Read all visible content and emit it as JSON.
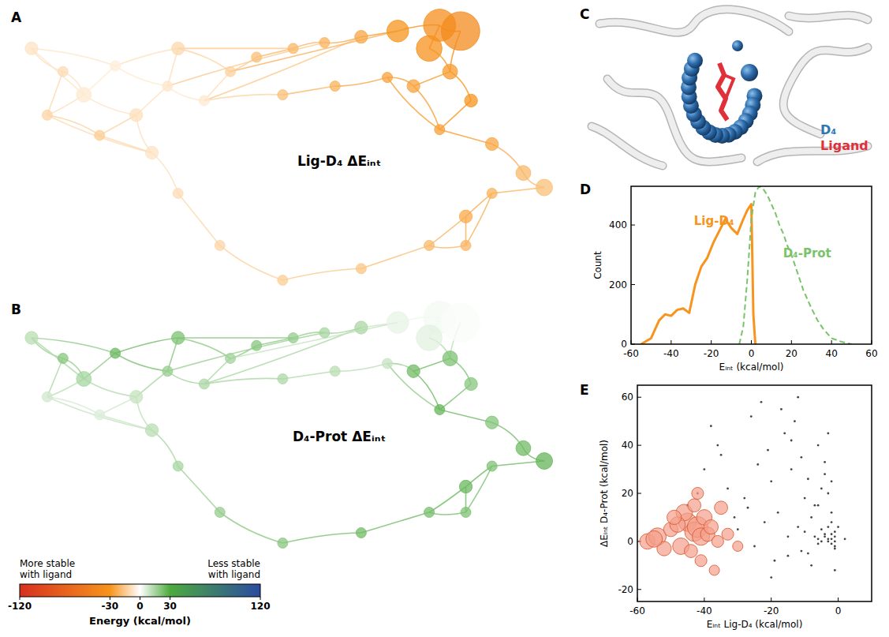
{
  "chart_data": [
    {
      "type": "network",
      "panel": "A",
      "title": "Lig-D₄ ΔEᵢₙₜ",
      "x": [
        2,
        8,
        5,
        12,
        18,
        22,
        28,
        15,
        30,
        35,
        40,
        45,
        52,
        58,
        65,
        72,
        80,
        84,
        78,
        82,
        75,
        86,
        80,
        90,
        96,
        100,
        90,
        85,
        78,
        65,
        50,
        38,
        30,
        25,
        70,
        60,
        50,
        85
      ],
      "y": [
        12,
        20,
        35,
        28,
        18,
        35,
        25,
        42,
        12,
        30,
        20,
        15,
        12,
        10,
        8,
        6,
        4,
        6,
        12,
        20,
        25,
        30,
        40,
        45,
        55,
        60,
        62,
        70,
        80,
        88,
        92,
        80,
        62,
        48,
        22,
        25,
        28,
        80
      ],
      "sizes": [
        2,
        1,
        1,
        3,
        1,
        2,
        1,
        1,
        2,
        1,
        1,
        1,
        1,
        1,
        2,
        8,
        20,
        30,
        12,
        3,
        2,
        2,
        1,
        2,
        3,
        4,
        1,
        2,
        1,
        1,
        1,
        1,
        1,
        2,
        1,
        1,
        1,
        1
      ],
      "values": [
        -8,
        -10,
        -12,
        -6,
        -5,
        -9,
        -7,
        -14,
        -11,
        -6,
        -13,
        -18,
        -20,
        -22,
        -25,
        -30,
        -35,
        -38,
        -32,
        -28,
        -26,
        -30,
        -27,
        -25,
        -20,
        -18,
        -22,
        -24,
        -20,
        -16,
        -14,
        -12,
        -10,
        -8,
        -26,
        -22,
        -18,
        -21
      ],
      "edges": [
        [
          0,
          1
        ],
        [
          1,
          2
        ],
        [
          1,
          3
        ],
        [
          2,
          3
        ],
        [
          3,
          4
        ],
        [
          4,
          0
        ],
        [
          3,
          5
        ],
        [
          5,
          7
        ],
        [
          2,
          7
        ],
        [
          4,
          6
        ],
        [
          6,
          8
        ],
        [
          5,
          6
        ],
        [
          6,
          9
        ],
        [
          9,
          10
        ],
        [
          8,
          10
        ],
        [
          10,
          11
        ],
        [
          11,
          12
        ],
        [
          12,
          13
        ],
        [
          13,
          14
        ],
        [
          14,
          15
        ],
        [
          15,
          16
        ],
        [
          16,
          17
        ],
        [
          16,
          18
        ],
        [
          18,
          19
        ],
        [
          17,
          19
        ],
        [
          19,
          20
        ],
        [
          19,
          21
        ],
        [
          21,
          22
        ],
        [
          22,
          23
        ],
        [
          23,
          24
        ],
        [
          24,
          25
        ],
        [
          25,
          26
        ],
        [
          26,
          27
        ],
        [
          27,
          28
        ],
        [
          28,
          29
        ],
        [
          29,
          30
        ],
        [
          30,
          31
        ],
        [
          31,
          32
        ],
        [
          32,
          33
        ],
        [
          33,
          2
        ],
        [
          33,
          7
        ],
        [
          20,
          34
        ],
        [
          34,
          35
        ],
        [
          35,
          36
        ],
        [
          36,
          9
        ],
        [
          22,
          34
        ],
        [
          27,
          37
        ],
        [
          37,
          26
        ],
        [
          9,
          14
        ],
        [
          10,
          15
        ],
        [
          6,
          13
        ],
        [
          5,
          33
        ],
        [
          8,
          12
        ],
        [
          20,
          22
        ],
        [
          28,
          37
        ],
        [
          0,
          3
        ],
        [
          4,
          8
        ]
      ]
    },
    {
      "type": "network",
      "panel": "B",
      "title": "D₄-Prot ΔEᵢₙₜ",
      "x": [
        2,
        8,
        5,
        12,
        18,
        22,
        28,
        15,
        30,
        35,
        40,
        45,
        52,
        58,
        65,
        72,
        80,
        84,
        78,
        82,
        75,
        86,
        80,
        90,
        96,
        100,
        90,
        85,
        78,
        65,
        50,
        38,
        30,
        25,
        70,
        60,
        50,
        85
      ],
      "y": [
        12,
        20,
        35,
        28,
        18,
        35,
        25,
        42,
        12,
        30,
        20,
        15,
        12,
        10,
        8,
        6,
        4,
        6,
        12,
        20,
        25,
        30,
        40,
        45,
        55,
        60,
        62,
        70,
        80,
        88,
        92,
        80,
        62,
        48,
        22,
        25,
        28,
        80
      ],
      "sizes": [
        2,
        1,
        1,
        3,
        1,
        2,
        1,
        1,
        2,
        1,
        1,
        1,
        1,
        1,
        2,
        8,
        20,
        30,
        12,
        3,
        2,
        2,
        1,
        2,
        3,
        4,
        1,
        2,
        1,
        1,
        1,
        1,
        1,
        2,
        1,
        1,
        1,
        1
      ],
      "values": [
        12,
        20,
        8,
        15,
        25,
        10,
        18,
        6,
        22,
        14,
        16,
        20,
        18,
        15,
        14,
        4,
        2,
        1,
        5,
        22,
        24,
        20,
        26,
        21,
        24,
        26,
        22,
        25,
        23,
        24,
        20,
        18,
        15,
        12,
        10,
        12,
        14,
        22
      ],
      "edges": [
        [
          0,
          1
        ],
        [
          1,
          2
        ],
        [
          1,
          3
        ],
        [
          2,
          3
        ],
        [
          3,
          4
        ],
        [
          4,
          0
        ],
        [
          3,
          5
        ],
        [
          5,
          7
        ],
        [
          2,
          7
        ],
        [
          4,
          6
        ],
        [
          6,
          8
        ],
        [
          5,
          6
        ],
        [
          6,
          9
        ],
        [
          9,
          10
        ],
        [
          8,
          10
        ],
        [
          10,
          11
        ],
        [
          11,
          12
        ],
        [
          12,
          13
        ],
        [
          13,
          14
        ],
        [
          14,
          15
        ],
        [
          15,
          16
        ],
        [
          16,
          17
        ],
        [
          16,
          18
        ],
        [
          18,
          19
        ],
        [
          17,
          19
        ],
        [
          19,
          20
        ],
        [
          19,
          21
        ],
        [
          21,
          22
        ],
        [
          22,
          23
        ],
        [
          23,
          24
        ],
        [
          24,
          25
        ],
        [
          25,
          26
        ],
        [
          26,
          27
        ],
        [
          27,
          28
        ],
        [
          28,
          29
        ],
        [
          29,
          30
        ],
        [
          30,
          31
        ],
        [
          31,
          32
        ],
        [
          32,
          33
        ],
        [
          33,
          2
        ],
        [
          33,
          7
        ],
        [
          20,
          34
        ],
        [
          34,
          35
        ],
        [
          35,
          36
        ],
        [
          36,
          9
        ],
        [
          22,
          34
        ],
        [
          27,
          37
        ],
        [
          37,
          26
        ],
        [
          9,
          14
        ],
        [
          10,
          15
        ],
        [
          6,
          13
        ],
        [
          5,
          33
        ],
        [
          8,
          12
        ],
        [
          20,
          22
        ],
        [
          28,
          37
        ],
        [
          0,
          3
        ],
        [
          4,
          8
        ]
      ]
    },
    {
      "type": "colorbar",
      "title": "Energy (kcal/mol)",
      "labels": [
        "More stable with ligand",
        "Less stable with ligand"
      ],
      "range": [
        -120,
        120
      ],
      "ticks": [
        -120,
        -30,
        0,
        30,
        120
      ],
      "colors": [
        "#d7301f",
        "#f7941d",
        "#ffffff",
        "#4daa3f",
        "#2b4ba0"
      ]
    },
    {
      "type": "structure",
      "panel": "C",
      "labels": [
        {
          "text": "D₄",
          "color": "#2e75b6"
        },
        {
          "text": "Ligand",
          "color": "#e0303a"
        }
      ]
    },
    {
      "type": "line",
      "panel": "D",
      "xlabel": "Eᵢₙₜ (kcal/mol)",
      "ylabel": "Count",
      "xlim": [
        -60,
        60
      ],
      "xticks": [
        -60,
        -40,
        -20,
        0,
        20,
        40,
        60
      ],
      "ylim": [
        0,
        530
      ],
      "yticks": [
        0,
        200,
        400
      ],
      "series": [
        {
          "name": "Lig-D₄",
          "color": "#f7941d",
          "line_style": "solid",
          "x": [
            -55,
            -50,
            -46,
            -43,
            -40,
            -37,
            -34,
            -31,
            -28,
            -25,
            -22,
            -19,
            -16,
            -13,
            -10,
            -7,
            -4,
            -2,
            0,
            1,
            2
          ],
          "values": [
            0,
            20,
            80,
            100,
            95,
            115,
            120,
            105,
            200,
            260,
            290,
            340,
            380,
            420,
            390,
            370,
            420,
            450,
            470,
            100,
            0
          ]
        },
        {
          "name": "D₄-Prot",
          "color": "#7ac36a",
          "line_style": "dashed",
          "x": [
            -6,
            -4,
            -2,
            0,
            2,
            4,
            6,
            8,
            10,
            12,
            14,
            16,
            18,
            20,
            22,
            24,
            26,
            28,
            30,
            33,
            36,
            40,
            45,
            50
          ],
          "values": [
            0,
            60,
            220,
            420,
            510,
            530,
            520,
            500,
            470,
            440,
            400,
            370,
            330,
            300,
            260,
            220,
            180,
            150,
            120,
            80,
            50,
            20,
            8,
            0
          ]
        }
      ]
    },
    {
      "type": "scatter",
      "panel": "E",
      "xlabel": "Eᵢₙₜ Lig-D₄ (kcal/mol)",
      "ylabel": "ΔEᵢₙₜ D₄-Prot (kcal/mol)",
      "xlim": [
        -60,
        10
      ],
      "xticks": [
        -60,
        -40,
        -20,
        0
      ],
      "ylim": [
        -25,
        65
      ],
      "yticks": [
        -20,
        0,
        20,
        40,
        60
      ],
      "series": [
        {
          "color": "#444444",
          "marker": "dot",
          "x": [
            -2,
            -1,
            -3,
            -4,
            -5,
            -6,
            -2,
            -1,
            -8,
            -10,
            -12,
            -7,
            -3,
            -9,
            -15,
            -18,
            -20,
            -22,
            -14,
            -11,
            -25,
            -28,
            -30,
            -16,
            -6,
            -4,
            -13,
            -19,
            -24,
            -2,
            -5,
            -8,
            -17,
            -21,
            -27,
            -33,
            -36,
            -40,
            -45,
            -38,
            -12,
            -9,
            -3,
            -1,
            -6,
            -15,
            -23,
            -31,
            -10,
            -4,
            0,
            2,
            -7,
            -14,
            -26,
            -35,
            -42,
            -20,
            -11,
            -2,
            -1,
            -2,
            -3,
            -1,
            -4,
            -2,
            -5,
            -3,
            -6,
            -1
          ],
          "values": [
            1,
            2,
            0,
            3,
            5,
            -1,
            8,
            -3,
            10,
            4,
            6,
            15,
            20,
            -5,
            2,
            12,
            25,
            8,
            30,
            35,
            -2,
            18,
            5,
            45,
            40,
            28,
            50,
            -8,
            32,
            12,
            22,
            -10,
            55,
            38,
            14,
            22,
            40,
            30,
            15,
            48,
            60,
            26,
            45,
            -12,
            15,
            -6,
            58,
            10,
            18,
            33,
            6,
            1,
            2,
            42,
            52,
            36,
            20,
            -15,
            -4,
            25,
            0,
            -1,
            1,
            4,
            2,
            3,
            0,
            6,
            1,
            -2
          ]
        },
        {
          "color": "#f4a08a",
          "marker": "bubble",
          "x": [
            -57,
            -54,
            -50,
            -47,
            -45,
            -43,
            -42,
            -41,
            -40,
            -39,
            -44,
            -46,
            -38,
            -36,
            -35,
            -48,
            -52,
            -55,
            -41,
            -43,
            -37,
            -33,
            -30,
            -49,
            -42
          ],
          "values": [
            0,
            2,
            5,
            -2,
            8,
            4,
            6,
            2,
            10,
            3,
            -4,
            12,
            6,
            0,
            14,
            7,
            -3,
            1,
            -8,
            15,
            -12,
            3,
            -2,
            10,
            20
          ],
          "sizes": [
            6,
            8,
            5,
            7,
            9,
            10,
            12,
            8,
            6,
            5,
            4,
            7,
            5,
            3,
            4,
            6,
            5,
            7,
            3,
            4,
            2,
            3,
            2,
            5,
            3
          ]
        }
      ]
    }
  ]
}
